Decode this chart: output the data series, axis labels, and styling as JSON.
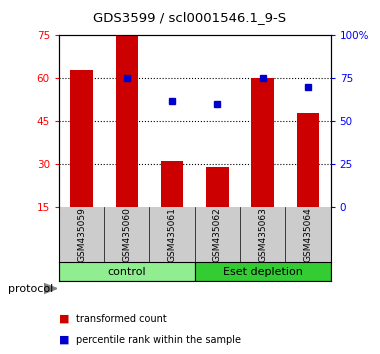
{
  "title": "GDS3599 / scl0001546.1_9-S",
  "samples": [
    "GSM435059",
    "GSM435060",
    "GSM435061",
    "GSM435062",
    "GSM435063",
    "GSM435064"
  ],
  "red_bars": [
    63,
    75,
    31,
    29,
    60,
    48
  ],
  "blue_markers": [
    null,
    75,
    62,
    60,
    75,
    70
  ],
  "ylim_left": [
    15,
    75
  ],
  "ylim_right": [
    0,
    100
  ],
  "yticks_left": [
    15,
    30,
    45,
    60,
    75
  ],
  "yticks_right": [
    0,
    25,
    50,
    75,
    100
  ],
  "ytick_labels_right": [
    "0",
    "25",
    "50",
    "75",
    "100%"
  ],
  "bar_color": "#cc0000",
  "marker_color": "#0000cc",
  "bar_width": 0.5,
  "groups": [
    {
      "label": "control",
      "indices": [
        0,
        1,
        2
      ],
      "color": "#90ee90"
    },
    {
      "label": "Eset depletion",
      "indices": [
        3,
        4,
        5
      ],
      "color": "#33cc33"
    }
  ],
  "protocol_label": "protocol",
  "legend_bar_label": "transformed count",
  "legend_marker_label": "percentile rank within the sample",
  "bg_color": "#ffffff",
  "sample_area_color": "#cccccc",
  "title_fontsize": 9.5,
  "tick_fontsize": 7.5,
  "sample_fontsize": 6.5,
  "group_fontsize": 8,
  "legend_fontsize": 7
}
